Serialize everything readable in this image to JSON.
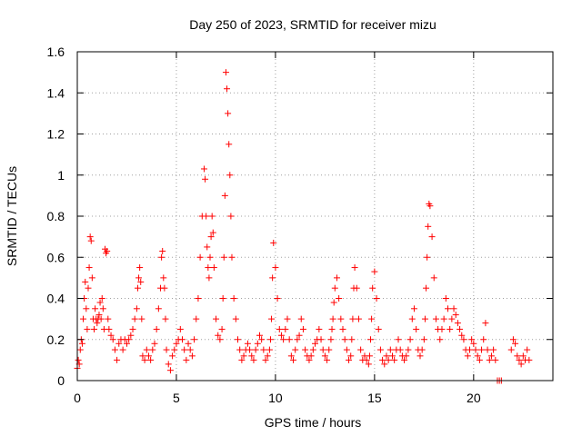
{
  "chart_data": {
    "type": "scatter",
    "title": "Day 250 of 2023, SRMTID for receiver mizu",
    "xlabel": "GPS time / hours",
    "ylabel": "SRMTID / TECUs",
    "xlim": [
      0,
      24
    ],
    "ylim": [
      0,
      1.6
    ],
    "xticks": [
      0,
      5,
      10,
      15,
      20
    ],
    "yticks": [
      0,
      0.2,
      0.4,
      0.6,
      0.8,
      1,
      1.2,
      1.4,
      1.6
    ],
    "xtick_labels": [
      "0",
      "5",
      "10",
      "15",
      "20"
    ],
    "ytick_labels": [
      "0",
      "0.2",
      "0.4",
      "0.6",
      "0.8",
      "1",
      "1.2",
      "1.4",
      "1.6"
    ],
    "grid": true,
    "marker": "+",
    "color": "#ff0000",
    "series": [
      {
        "name": "SRMTID",
        "x": [
          0.0,
          0.05,
          0.1,
          0.15,
          0.2,
          0.25,
          0.3,
          0.35,
          0.4,
          0.45,
          0.5,
          0.55,
          0.6,
          0.65,
          0.7,
          0.75,
          0.8,
          0.85,
          0.9,
          0.95,
          1.0,
          1.05,
          1.1,
          1.15,
          1.2,
          1.25,
          1.3,
          1.35,
          1.4,
          1.45,
          1.5,
          1.55,
          1.6,
          1.7,
          1.8,
          1.9,
          2.0,
          2.1,
          2.2,
          2.3,
          2.4,
          2.5,
          2.6,
          2.7,
          2.8,
          2.9,
          3.0,
          3.05,
          3.1,
          3.15,
          3.2,
          3.25,
          3.3,
          3.4,
          3.5,
          3.6,
          3.7,
          3.8,
          3.9,
          4.0,
          4.1,
          4.2,
          4.25,
          4.3,
          4.35,
          4.4,
          4.45,
          4.5,
          4.6,
          4.7,
          4.8,
          4.9,
          5.0,
          5.1,
          5.2,
          5.3,
          5.4,
          5.5,
          5.6,
          5.7,
          5.8,
          5.9,
          6.0,
          6.1,
          6.2,
          6.3,
          6.4,
          6.45,
          6.5,
          6.55,
          6.6,
          6.65,
          6.7,
          6.75,
          6.8,
          6.85,
          6.9,
          7.0,
          7.1,
          7.2,
          7.3,
          7.35,
          7.4,
          7.45,
          7.5,
          7.55,
          7.6,
          7.65,
          7.7,
          7.75,
          7.8,
          7.9,
          8.0,
          8.1,
          8.2,
          8.3,
          8.4,
          8.5,
          8.6,
          8.7,
          8.8,
          8.9,
          9.0,
          9.1,
          9.2,
          9.3,
          9.4,
          9.5,
          9.6,
          9.7,
          9.75,
          9.8,
          9.85,
          9.9,
          10.0,
          10.1,
          10.2,
          10.3,
          10.4,
          10.5,
          10.6,
          10.7,
          10.8,
          10.9,
          11.0,
          11.1,
          11.2,
          11.3,
          11.4,
          11.5,
          11.6,
          11.7,
          11.8,
          11.9,
          12.0,
          12.1,
          12.2,
          12.3,
          12.4,
          12.5,
          12.6,
          12.7,
          12.8,
          12.85,
          12.9,
          12.95,
          13.0,
          13.1,
          13.2,
          13.3,
          13.4,
          13.5,
          13.6,
          13.7,
          13.8,
          13.85,
          13.9,
          13.95,
          14.0,
          14.1,
          14.2,
          14.3,
          14.4,
          14.5,
          14.6,
          14.7,
          14.75,
          14.8,
          14.85,
          14.9,
          15.0,
          15.1,
          15.2,
          15.3,
          15.4,
          15.5,
          15.6,
          15.7,
          15.8,
          15.9,
          16.0,
          16.1,
          16.2,
          16.3,
          16.4,
          16.5,
          16.6,
          16.7,
          16.8,
          16.9,
          17.0,
          17.1,
          17.2,
          17.3,
          17.4,
          17.5,
          17.55,
          17.6,
          17.65,
          17.7,
          17.75,
          17.8,
          17.9,
          18.0,
          18.1,
          18.2,
          18.3,
          18.4,
          18.5,
          18.6,
          18.7,
          18.8,
          18.9,
          19.0,
          19.1,
          19.2,
          19.3,
          19.4,
          19.5,
          19.6,
          19.7,
          19.8,
          19.9,
          20.0,
          20.1,
          20.2,
          20.3,
          20.4,
          20.5,
          20.6,
          20.7,
          20.8,
          20.9,
          21.0,
          21.1,
          21.2,
          21.3,
          21.4,
          21.9,
          22.0,
          22.1,
          22.2,
          22.3,
          22.4,
          22.5,
          22.6,
          22.7,
          22.8
        ],
        "y": [
          0.06,
          0.1,
          0.08,
          0.15,
          0.2,
          0.18,
          0.3,
          0.4,
          0.48,
          0.35,
          0.25,
          0.45,
          0.55,
          0.7,
          0.68,
          0.5,
          0.3,
          0.25,
          0.35,
          0.3,
          0.28,
          0.3,
          0.32,
          0.38,
          0.3,
          0.4,
          0.35,
          0.25,
          0.64,
          0.62,
          0.63,
          0.3,
          0.25,
          0.22,
          0.2,
          0.15,
          0.1,
          0.18,
          0.2,
          0.15,
          0.2,
          0.18,
          0.2,
          0.22,
          0.25,
          0.3,
          0.35,
          0.45,
          0.5,
          0.55,
          0.48,
          0.3,
          0.12,
          0.1,
          0.15,
          0.12,
          0.1,
          0.15,
          0.18,
          0.25,
          0.35,
          0.45,
          0.6,
          0.63,
          0.5,
          0.45,
          0.3,
          0.15,
          0.08,
          0.05,
          0.12,
          0.15,
          0.18,
          0.2,
          0.25,
          0.2,
          0.15,
          0.1,
          0.18,
          0.15,
          0.12,
          0.2,
          0.3,
          0.4,
          0.6,
          0.8,
          1.03,
          0.98,
          0.8,
          0.65,
          0.55,
          0.5,
          0.6,
          0.7,
          0.8,
          0.72,
          0.55,
          0.3,
          0.22,
          0.2,
          0.25,
          0.4,
          0.6,
          0.9,
          1.5,
          1.42,
          1.3,
          1.15,
          1.0,
          0.8,
          0.6,
          0.4,
          0.3,
          0.2,
          0.15,
          0.1,
          0.12,
          0.15,
          0.18,
          0.15,
          0.12,
          0.1,
          0.15,
          0.18,
          0.22,
          0.2,
          0.15,
          0.1,
          0.12,
          0.15,
          0.2,
          0.3,
          0.5,
          0.67,
          0.55,
          0.4,
          0.25,
          0.22,
          0.2,
          0.25,
          0.3,
          0.2,
          0.12,
          0.1,
          0.15,
          0.2,
          0.22,
          0.3,
          0.25,
          0.15,
          0.12,
          0.1,
          0.12,
          0.15,
          0.18,
          0.2,
          0.25,
          0.2,
          0.15,
          0.12,
          0.1,
          0.15,
          0.2,
          0.25,
          0.3,
          0.38,
          0.45,
          0.5,
          0.4,
          0.3,
          0.25,
          0.2,
          0.15,
          0.1,
          0.12,
          0.2,
          0.3,
          0.45,
          0.55,
          0.45,
          0.3,
          0.15,
          0.1,
          0.12,
          0.1,
          0.08,
          0.12,
          0.2,
          0.3,
          0.45,
          0.53,
          0.4,
          0.25,
          0.15,
          0.1,
          0.08,
          0.12,
          0.1,
          0.15,
          0.12,
          0.1,
          0.15,
          0.2,
          0.15,
          0.12,
          0.1,
          0.12,
          0.15,
          0.2,
          0.3,
          0.35,
          0.25,
          0.15,
          0.12,
          0.15,
          0.2,
          0.3,
          0.45,
          0.6,
          0.75,
          0.86,
          0.85,
          0.7,
          0.5,
          0.3,
          0.25,
          0.2,
          0.25,
          0.3,
          0.4,
          0.35,
          0.25,
          0.3,
          0.35,
          0.32,
          0.28,
          0.25,
          0.22,
          0.2,
          0.15,
          0.12,
          0.15,
          0.2,
          0.18,
          0.15,
          0.12,
          0.1,
          0.15,
          0.2,
          0.28,
          0.15,
          0.1,
          0.12,
          0.15,
          0.1,
          0.0,
          0.0,
          0.0,
          0.15,
          0.2,
          0.18,
          0.12,
          0.1,
          0.08,
          0.12,
          0.1,
          0.15,
          0.1
        ]
      }
    ]
  }
}
